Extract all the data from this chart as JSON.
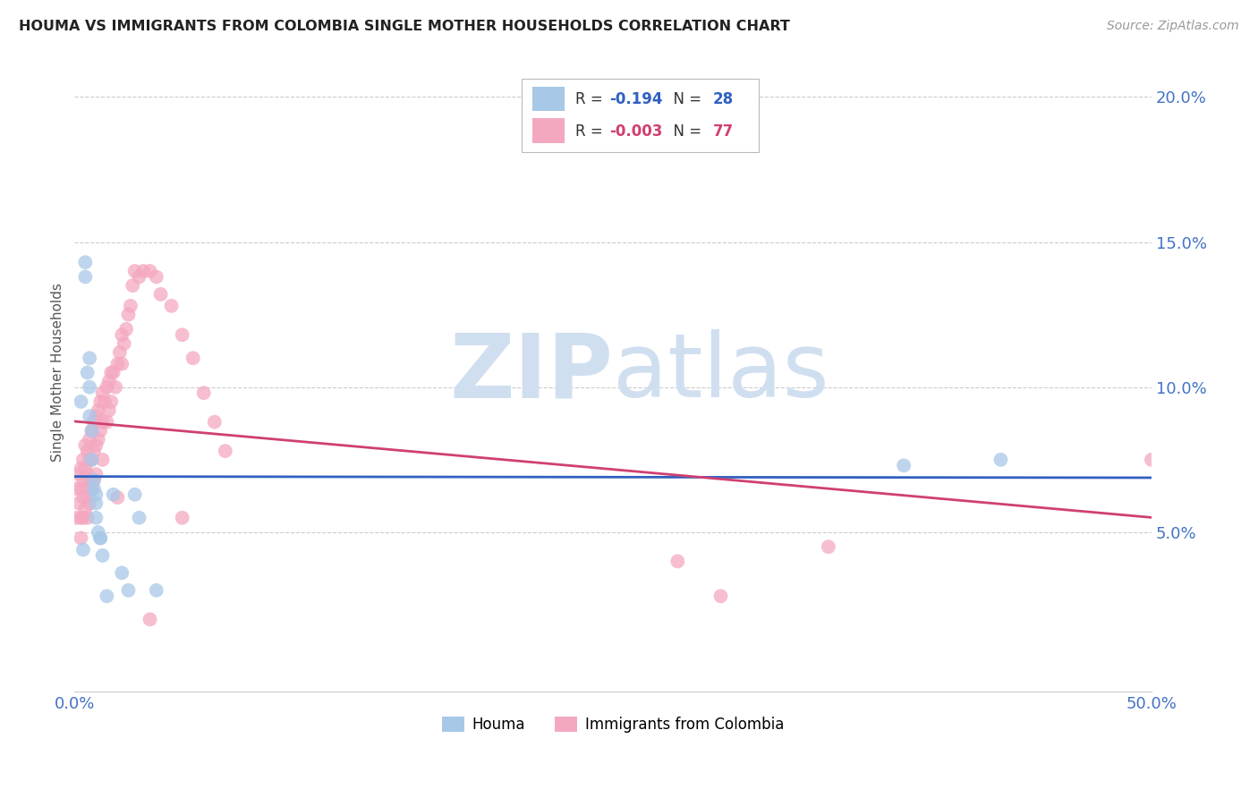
{
  "title": "HOUMA VS IMMIGRANTS FROM COLOMBIA SINGLE MOTHER HOUSEHOLDS CORRELATION CHART",
  "source": "Source: ZipAtlas.com",
  "ylabel": "Single Mother Households",
  "blue_color": "#4472c4",
  "xlim": [
    0.0,
    0.5
  ],
  "ylim": [
    -0.005,
    0.215
  ],
  "ytick_right": [
    0.05,
    0.1,
    0.15,
    0.2
  ],
  "ytick_right_labels": [
    "5.0%",
    "10.0%",
    "15.0%",
    "20.0%"
  ],
  "houma_R": "-0.194",
  "houma_N": "28",
  "colombia_R": "-0.003",
  "colombia_N": "77",
  "houma_color": "#a8c8e8",
  "colombia_color": "#f4a8c0",
  "trendline_houma_color": "#3060c0",
  "trendline_colombia_color": "#d04070",
  "watermark_color": "#d0dff0",
  "houma_x": [
    0.002,
    0.004,
    0.004,
    0.005,
    0.005,
    0.006,
    0.006,
    0.007,
    0.007,
    0.008,
    0.008,
    0.009,
    0.009,
    0.01,
    0.01,
    0.011,
    0.011,
    0.012,
    0.013,
    0.014,
    0.015,
    0.018,
    0.022,
    0.025,
    0.03,
    0.038,
    0.385,
    0.43
  ],
  "houma_y": [
    0.044,
    0.095,
    0.09,
    0.145,
    0.14,
    0.105,
    0.1,
    0.108,
    0.098,
    0.09,
    0.085,
    0.068,
    0.065,
    0.062,
    0.058,
    0.054,
    0.05,
    0.048,
    0.042,
    0.042,
    0.028,
    0.036,
    0.063,
    0.03,
    0.055,
    0.03,
    0.073,
    0.075
  ],
  "colombia_x": [
    0.001,
    0.001,
    0.002,
    0.002,
    0.002,
    0.003,
    0.003,
    0.003,
    0.004,
    0.004,
    0.004,
    0.004,
    0.005,
    0.005,
    0.005,
    0.005,
    0.005,
    0.006,
    0.006,
    0.006,
    0.006,
    0.007,
    0.007,
    0.007,
    0.007,
    0.008,
    0.008,
    0.008,
    0.009,
    0.009,
    0.009,
    0.01,
    0.01,
    0.011,
    0.011,
    0.012,
    0.012,
    0.013,
    0.013,
    0.013,
    0.014,
    0.014,
    0.015,
    0.015,
    0.016,
    0.016,
    0.017,
    0.018,
    0.018,
    0.019,
    0.02,
    0.021,
    0.022,
    0.022,
    0.023,
    0.024,
    0.025,
    0.026,
    0.027,
    0.028,
    0.03,
    0.032,
    0.035,
    0.038,
    0.04,
    0.045,
    0.05,
    0.055,
    0.06,
    0.065,
    0.28,
    0.3,
    0.35,
    0.015,
    0.04,
    0.5,
    0.062
  ],
  "colombia_y": [
    0.065,
    0.058,
    0.068,
    0.062,
    0.055,
    0.072,
    0.068,
    0.055,
    0.075,
    0.07,
    0.065,
    0.06,
    0.08,
    0.075,
    0.068,
    0.06,
    0.055,
    0.082,
    0.075,
    0.065,
    0.06,
    0.085,
    0.078,
    0.07,
    0.062,
    0.088,
    0.078,
    0.068,
    0.085,
    0.075,
    0.065,
    0.09,
    0.08,
    0.092,
    0.082,
    0.095,
    0.085,
    0.098,
    0.088,
    0.075,
    0.095,
    0.082,
    0.098,
    0.088,
    0.102,
    0.092,
    0.098,
    0.105,
    0.095,
    0.1,
    0.108,
    0.112,
    0.118,
    0.105,
    0.115,
    0.12,
    0.125,
    0.128,
    0.135,
    0.14,
    0.138,
    0.142,
    0.14,
    0.138,
    0.132,
    0.128,
    0.118,
    0.108,
    0.095,
    0.085,
    0.04,
    0.028,
    0.045,
    0.14,
    0.055,
    0.075,
    0.098
  ]
}
